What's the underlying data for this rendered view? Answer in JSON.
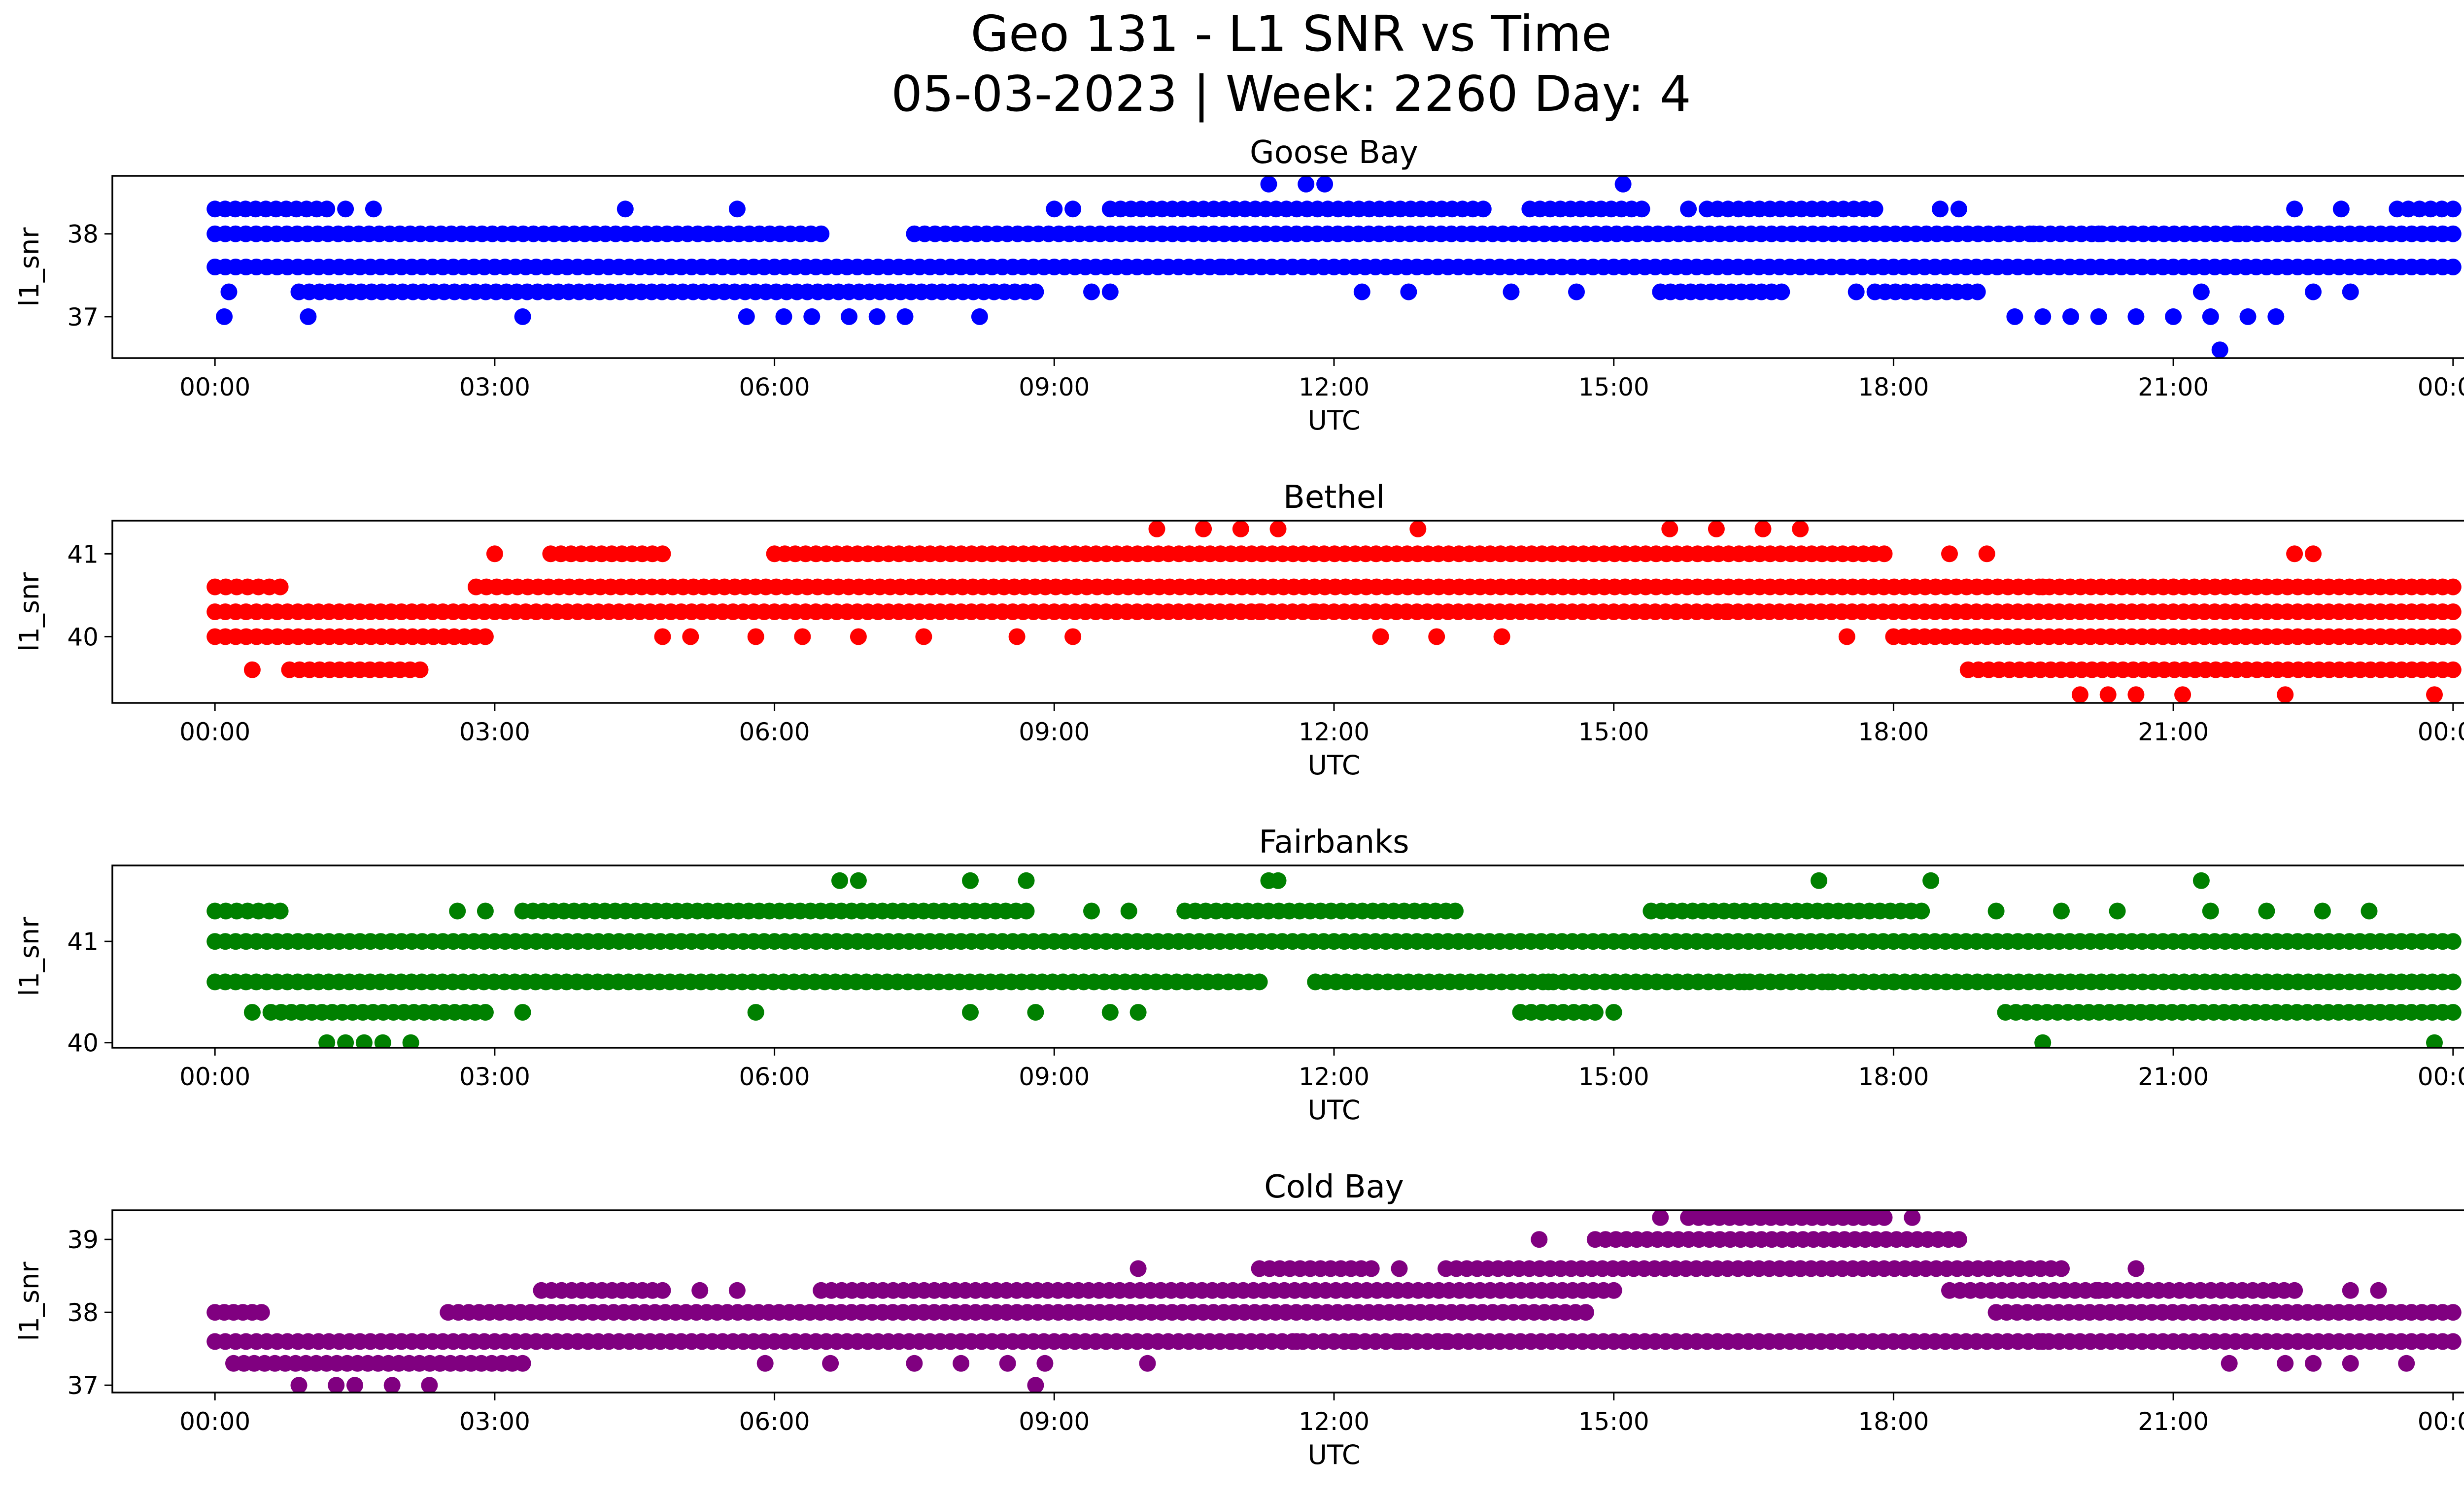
{
  "figure": {
    "title_line1": "Geo 131 - L1 SNR vs Time",
    "title_line2": "05-03-2023 | Week: 2260 Day: 4"
  },
  "chart_data": [
    {
      "type": "scatter",
      "title": "Goose Bay",
      "xlabel": "UTC",
      "ylabel": "l1_snr",
      "color": "#0000ff",
      "x_unit": "hours UTC",
      "xlim": [
        -1.1,
        25.1
      ],
      "ylim": [
        36.5,
        38.7
      ],
      "yticks": [
        37,
        38
      ],
      "xticks": [
        "00:00",
        "03:00",
        "06:00",
        "09:00",
        "12:00",
        "15:00",
        "18:00",
        "21:00",
        "00:00"
      ],
      "bands": [
        {
          "y": 37.6,
          "segments": [
            [
              0,
              24
            ]
          ]
        },
        {
          "y": 38.0,
          "segments": [
            [
              0,
              6.5
            ],
            [
              7.5,
              24
            ]
          ]
        },
        {
          "y": 37.3,
          "segments": [
            [
              0.9,
              8.8
            ],
            [
              15.5,
              16.8
            ],
            [
              17.8,
              18.9
            ]
          ]
        },
        {
          "y": 38.3,
          "segments": [
            [
              0,
              1.2
            ],
            [
              9.6,
              13.6
            ],
            [
              14.1,
              15.3
            ],
            [
              16.0,
              17.8
            ],
            [
              23.4,
              24
            ]
          ]
        }
      ],
      "points": [
        [
          0.1,
          37.0
        ],
        [
          0.15,
          37.3
        ],
        [
          1.0,
          37.0
        ],
        [
          3.3,
          37.0
        ],
        [
          5.7,
          37.0
        ],
        [
          6.1,
          37.0
        ],
        [
          6.4,
          37.0
        ],
        [
          6.8,
          37.0
        ],
        [
          7.1,
          37.0
        ],
        [
          7.4,
          37.0
        ],
        [
          8.2,
          37.0
        ],
        [
          4.4,
          38.3
        ],
        [
          5.6,
          38.3
        ],
        [
          1.4,
          38.3
        ],
        [
          1.7,
          38.3
        ],
        [
          9.0,
          38.3
        ],
        [
          9.2,
          38.3
        ],
        [
          9.4,
          37.3
        ],
        [
          9.6,
          37.3
        ],
        [
          11.3,
          38.6
        ],
        [
          11.7,
          38.6
        ],
        [
          11.9,
          38.6
        ],
        [
          12.3,
          37.3
        ],
        [
          12.8,
          37.3
        ],
        [
          14.6,
          37.3
        ],
        [
          15.1,
          38.6
        ],
        [
          15.8,
          38.3
        ],
        [
          17.6,
          37.3
        ],
        [
          18.5,
          38.3
        ],
        [
          18.7,
          38.3
        ],
        [
          19.3,
          37.0
        ],
        [
          19.6,
          37.0
        ],
        [
          19.9,
          37.0
        ],
        [
          20.2,
          37.0
        ],
        [
          20.6,
          37.0
        ],
        [
          21.0,
          37.0
        ],
        [
          21.4,
          37.0
        ],
        [
          21.8,
          37.0
        ],
        [
          21.5,
          36.6
        ],
        [
          21.7,
          38.0
        ],
        [
          22.1,
          37.0
        ],
        [
          22.3,
          38.3
        ],
        [
          22.5,
          37.3
        ],
        [
          22.9,
          37.3
        ],
        [
          22.8,
          38.3
        ],
        [
          19.5,
          38.0
        ],
        [
          20.2,
          38.0
        ],
        [
          21.3,
          37.3
        ],
        [
          13.9,
          37.3
        ],
        [
          10.8,
          37.6
        ]
      ]
    },
    {
      "type": "scatter",
      "title": "Bethel",
      "xlabel": "UTC",
      "ylabel": "l1_snr",
      "color": "#ff0000",
      "x_unit": "hours UTC",
      "xlim": [
        -1.1,
        25.1
      ],
      "ylim": [
        39.2,
        41.4
      ],
      "yticks": [
        40,
        41
      ],
      "xticks": [
        "00:00",
        "03:00",
        "06:00",
        "09:00",
        "12:00",
        "15:00",
        "18:00",
        "21:00",
        "00:00"
      ],
      "bands": [
        {
          "y": 40.3,
          "segments": [
            [
              0,
              24
            ]
          ]
        },
        {
          "y": 40.6,
          "segments": [
            [
              0,
              0.7
            ],
            [
              2.8,
              24
            ]
          ]
        },
        {
          "y": 40.0,
          "segments": [
            [
              0,
              2.9
            ],
            [
              18.0,
              24
            ]
          ]
        },
        {
          "y": 39.6,
          "segments": [
            [
              0.8,
              2.2
            ],
            [
              18.8,
              24
            ]
          ]
        },
        {
          "y": 41.0,
          "segments": [
            [
              3.6,
              4.8
            ],
            [
              6.0,
              17.9
            ]
          ]
        }
      ],
      "points": [
        [
          0.4,
          39.6
        ],
        [
          3.0,
          41.0
        ],
        [
          4.8,
          40.0
        ],
        [
          5.1,
          40.0
        ],
        [
          5.8,
          40.0
        ],
        [
          6.3,
          40.0
        ],
        [
          6.9,
          40.0
        ],
        [
          7.6,
          40.0
        ],
        [
          8.6,
          40.0
        ],
        [
          9.2,
          40.0
        ],
        [
          10.1,
          41.3
        ],
        [
          10.6,
          41.3
        ],
        [
          11.0,
          41.3
        ],
        [
          11.4,
          41.3
        ],
        [
          12.9,
          41.3
        ],
        [
          12.5,
          40.0
        ],
        [
          13.1,
          40.0
        ],
        [
          13.8,
          40.0
        ],
        [
          15.6,
          41.3
        ],
        [
          16.1,
          41.3
        ],
        [
          16.6,
          41.3
        ],
        [
          17.0,
          41.3
        ],
        [
          16.2,
          40.3
        ],
        [
          17.5,
          40.0
        ],
        [
          11.8,
          40.3
        ],
        [
          11.2,
          40.3
        ],
        [
          18.6,
          41.0
        ],
        [
          19.0,
          41.0
        ],
        [
          20.0,
          39.3
        ],
        [
          20.3,
          39.3
        ],
        [
          20.6,
          39.3
        ],
        [
          21.1,
          39.3
        ],
        [
          22.2,
          39.3
        ],
        [
          23.8,
          39.3
        ],
        [
          22.3,
          41.0
        ],
        [
          22.5,
          41.0
        ],
        [
          19.6,
          40.6
        ],
        [
          21.0,
          40.6
        ]
      ]
    },
    {
      "type": "scatter",
      "title": "Fairbanks",
      "xlabel": "UTC",
      "ylabel": "l1_snr",
      "color": "#008000",
      "x_unit": "hours UTC",
      "xlim": [
        -1.1,
        25.1
      ],
      "ylim": [
        39.95,
        41.75
      ],
      "yticks": [
        40,
        41
      ],
      "xticks": [
        "00:00",
        "03:00",
        "06:00",
        "09:00",
        "12:00",
        "15:00",
        "18:00",
        "21:00",
        "00:00"
      ],
      "bands": [
        {
          "y": 41.0,
          "segments": [
            [
              0,
              24
            ]
          ]
        },
        {
          "y": 40.6,
          "segments": [
            [
              0,
              11.2
            ],
            [
              11.8,
              24
            ]
          ]
        },
        {
          "y": 41.3,
          "segments": [
            [
              0,
              0.7
            ],
            [
              3.3,
              8.7
            ],
            [
              10.4,
              13.2
            ],
            [
              15.4,
              18.3
            ]
          ]
        },
        {
          "y": 40.3,
          "segments": [
            [
              0.6,
              2.9
            ],
            [
              14.0,
              14.8
            ],
            [
              19.2,
              24
            ]
          ]
        }
      ],
      "points": [
        [
          0.4,
          40.3
        ],
        [
          1.2,
          40.0
        ],
        [
          1.4,
          40.0
        ],
        [
          1.6,
          40.0
        ],
        [
          1.8,
          40.0
        ],
        [
          2.1,
          40.0
        ],
        [
          3.3,
          40.3
        ],
        [
          5.8,
          40.3
        ],
        [
          8.1,
          40.3
        ],
        [
          8.8,
          40.3
        ],
        [
          9.6,
          40.3
        ],
        [
          9.9,
          40.3
        ],
        [
          6.7,
          41.6
        ],
        [
          6.9,
          41.6
        ],
        [
          8.1,
          41.6
        ],
        [
          8.7,
          41.6
        ],
        [
          11.3,
          41.6
        ],
        [
          11.4,
          41.6
        ],
        [
          17.2,
          41.6
        ],
        [
          18.4,
          41.6
        ],
        [
          21.3,
          41.6
        ],
        [
          19.6,
          40.0
        ],
        [
          23.8,
          40.0
        ],
        [
          15.0,
          40.3
        ],
        [
          2.6,
          41.3
        ],
        [
          2.9,
          41.3
        ],
        [
          9.4,
          41.3
        ],
        [
          9.8,
          41.3
        ],
        [
          13.3,
          41.3
        ],
        [
          19.1,
          41.3
        ],
        [
          19.8,
          41.3
        ],
        [
          20.4,
          41.3
        ],
        [
          21.4,
          41.3
        ],
        [
          22.0,
          41.3
        ],
        [
          22.6,
          41.3
        ],
        [
          23.1,
          41.3
        ],
        [
          16.4,
          40.6
        ],
        [
          17.3,
          40.6
        ],
        [
          18.0,
          40.6
        ],
        [
          14.3,
          40.6
        ]
      ]
    },
    {
      "type": "scatter",
      "title": "Cold Bay",
      "xlabel": "UTC",
      "ylabel": "l1_snr",
      "color": "#800080",
      "x_unit": "hours UTC",
      "xlim": [
        -1.1,
        25.1
      ],
      "ylim": [
        36.9,
        39.4
      ],
      "yticks": [
        37,
        38,
        39
      ],
      "xticks": [
        "00:00",
        "03:00",
        "06:00",
        "09:00",
        "12:00",
        "15:00",
        "18:00",
        "21:00",
        "00:00"
      ],
      "bands": [
        {
          "y": 37.6,
          "segments": [
            [
              0,
              24
            ]
          ]
        },
        {
          "y": 38.0,
          "segments": [
            [
              2.5,
              14.7
            ],
            [
              19.1,
              24
            ]
          ]
        },
        {
          "y": 37.3,
          "segments": [
            [
              0.2,
              3.3
            ]
          ]
        },
        {
          "y": 38.3,
          "segments": [
            [
              3.5,
              4.8
            ],
            [
              6.5,
              15.0
            ],
            [
              18.6,
              22.3
            ]
          ]
        },
        {
          "y": 38.6,
          "segments": [
            [
              11.2,
              12.4
            ],
            [
              13.2,
              19.8
            ]
          ]
        },
        {
          "y": 39.0,
          "segments": [
            [
              14.8,
              18.7
            ]
          ]
        },
        {
          "y": 39.3,
          "segments": [
            [
              15.8,
              17.9
            ]
          ]
        },
        {
          "y": 38.0,
          "segments": [
            [
              0,
              0.5
            ]
          ]
        }
      ],
      "points": [
        [
          0.9,
          37.0
        ],
        [
          1.3,
          37.0
        ],
        [
          1.5,
          37.0
        ],
        [
          1.9,
          37.0
        ],
        [
          2.3,
          37.0
        ],
        [
          8.8,
          37.0
        ],
        [
          5.9,
          37.3
        ],
        [
          6.6,
          37.3
        ],
        [
          7.5,
          37.3
        ],
        [
          8.0,
          37.3
        ],
        [
          8.5,
          37.3
        ],
        [
          8.9,
          37.3
        ],
        [
          10.0,
          37.3
        ],
        [
          9.9,
          38.6
        ],
        [
          10.9,
          37.6
        ],
        [
          11.6,
          37.6
        ],
        [
          12.2,
          37.6
        ],
        [
          12.7,
          37.6
        ],
        [
          13.2,
          37.6
        ],
        [
          14.2,
          39.0
        ],
        [
          15.5,
          39.3
        ],
        [
          18.2,
          39.3
        ],
        [
          19.6,
          37.6
        ],
        [
          20.2,
          38.3
        ],
        [
          20.6,
          38.6
        ],
        [
          21.6,
          37.3
        ],
        [
          22.2,
          37.3
        ],
        [
          22.5,
          37.3
        ],
        [
          22.9,
          37.3
        ],
        [
          23.5,
          37.3
        ],
        [
          22.9,
          38.3
        ],
        [
          23.2,
          38.3
        ],
        [
          5.2,
          38.3
        ],
        [
          5.6,
          38.3
        ],
        [
          12.7,
          38.6
        ],
        [
          17.0,
          38.6
        ]
      ]
    }
  ]
}
